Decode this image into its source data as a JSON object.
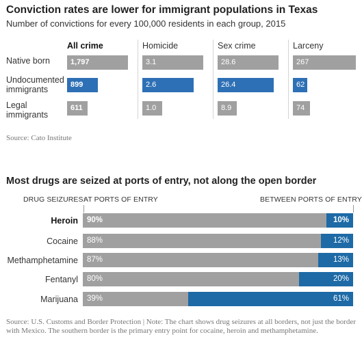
{
  "colors": {
    "gray": "#a0a0a0",
    "blue": "#2e70b5",
    "dark_blue": "#1d6aa6"
  },
  "chart1": {
    "title": "Conviction rates are lower for immigrant populations in Texas",
    "subtitle": "Number of convictions for every 100,000 residents in each group, 2015",
    "source": "Source: Cato Institute"
  },
  "chart2": {
    "title": "Most drugs are seized at ports of entry, not along the open border",
    "left_caption": "DRUG SEIZURES:",
    "at_caption": "AT PORTS OF ENTRY",
    "between_caption": "BETWEEN PORTS OF ENTRY",
    "source": "Source: U.S. Customs and Border Protection | Note: The chart shows drug seizures at all borders, not just the border with Mexico. The southern border is the primary entry point for cocaine, heroin and methamphetamine."
  },
  "chart_data": [
    {
      "type": "bar",
      "title": "Conviction rates are lower for immigrant populations in Texas",
      "subtitle": "Number of convictions for every 100,000 residents in each group, 2015",
      "categories": [
        "Native born",
        "Undocumented immigrants",
        "Legal immigrants"
      ],
      "category_lines": [
        [
          "Native born"
        ],
        [
          "Undocumented",
          "immigrants"
        ],
        [
          "Legal",
          "immigrants"
        ]
      ],
      "series": [
        {
          "name": "All crime",
          "values": [
            1797,
            899,
            611
          ],
          "labels": [
            "1,797",
            "899",
            "611"
          ],
          "xmax": 1797
        },
        {
          "name": "Homicide",
          "values": [
            3.1,
            2.6,
            1.0
          ],
          "labels": [
            "3.1",
            "2.6",
            "1.0"
          ],
          "xmax": 3.1
        },
        {
          "name": "Sex crime",
          "values": [
            28.6,
            26.4,
            8.9
          ],
          "labels": [
            "28.6",
            "26.4",
            "8.9"
          ],
          "xmax": 28.6
        },
        {
          "name": "Larceny",
          "values": [
            267,
            62,
            74
          ],
          "labels": [
            "267",
            "62",
            "74"
          ],
          "xmax": 267
        }
      ],
      "highlight_category": "Undocumented immigrants",
      "source": "Source: Cato Institute"
    },
    {
      "type": "bar",
      "stacked": true,
      "orientation": "horizontal",
      "title": "Most drugs are seized at ports of entry, not along the open border",
      "categories": [
        "Heroin",
        "Cocaine",
        "Methamphetamine",
        "Fentanyl",
        "Marijuana"
      ],
      "series": [
        {
          "name": "AT PORTS OF ENTRY",
          "values": [
            90,
            88,
            87,
            80,
            39
          ]
        },
        {
          "name": "BETWEEN PORTS OF ENTRY",
          "values": [
            10,
            12,
            13,
            20,
            61
          ]
        }
      ],
      "xlim": [
        0,
        100
      ],
      "unit": "%",
      "source": "Source: U.S. Customs and Border Protection | Note: The chart shows drug seizures at all borders, not just the border with Mexico. The southern border is the primary entry point for cocaine, heroin and methamphetamine."
    }
  ]
}
